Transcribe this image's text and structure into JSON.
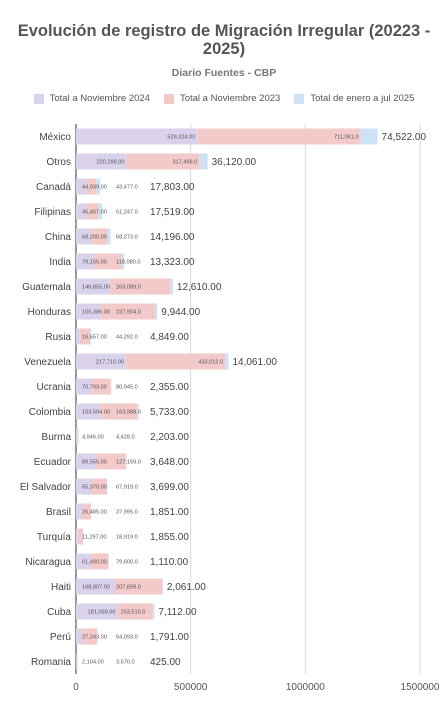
{
  "header": {
    "title": "Evolución de registro de Migración Irregular (20223 - 2025)",
    "subtitle": "Diario Fuentes - CBP"
  },
  "legend": [
    {
      "label": "Total a Noviembre 2024",
      "color": "#d9d2ea"
    },
    {
      "label": "Total a Noviembre 2023",
      "color": "#f3c9c9"
    },
    {
      "label": "Total de enero a jul 2025",
      "color": "#cfe2f3"
    }
  ],
  "chart_data": {
    "type": "bar",
    "orientation": "horizontal",
    "stacked": true,
    "title": "Evolución de registro de Migración Irregular (20223 - 2025)",
    "subtitle": "Diario Fuentes - CBP",
    "categories": [
      "México",
      "Otros",
      "Canadá",
      "Filipinas",
      "China",
      "India",
      "Guatemala",
      "Honduras",
      "Rusia",
      "Venezuela",
      "Ucrania",
      "Colombia",
      "Burma",
      "Ecuador",
      "El Salvador",
      "Brasil",
      "Turquía",
      "Nicaragua",
      "Haiti",
      "Cuba",
      "Perú",
      "Romania"
    ],
    "series": [
      {
        "name": "Total a Noviembre 2024",
        "color": "#d9d2ea",
        "values": [
          529324,
          220288,
          44939,
          45407,
          68200,
          79155,
          146855,
          106386,
          16657,
          217710,
          70793,
          103594,
          4946,
          89555,
          65370,
          26485,
          11297,
          61490,
          168807,
          181069,
          27243,
          2104
        ],
        "labels": [
          "529,324.00",
          "220,288.00",
          "44,939.00",
          "45,407.00",
          "68,200.00",
          "79,155.00",
          "146,855.00",
          "106,386.00",
          "16,657.00",
          "217,710.00",
          "70,793.00",
          "103,594.00",
          "4,946.00",
          "89,555.00",
          "65,370.00",
          "26,485.00",
          "11,297.00",
          "61,490.00",
          "168,807.00",
          "181,069.00",
          "27,243.00",
          "2,104.00"
        ]
      },
      {
        "name": "Total a Noviembre 2023",
        "color": "#f3c9c9",
        "values": [
          711061,
          317498,
          43477,
          51247,
          68273,
          118080,
          263089,
          237904,
          44292,
          433012,
          80945,
          163988,
          4428,
          127159,
          67919,
          37995,
          18919,
          79600,
          207899,
          153510,
          64093,
          3570
        ],
        "labels": [
          "711,061.0",
          "317,498.0",
          "43,477.0",
          "51,247.0",
          "68,273.0",
          "118,080.0",
          "263,089.0",
          "237,904.0",
          "44,292.0",
          "433,012.0",
          "80,945.0",
          "163,988.0",
          "4,428.0",
          "127,159.0",
          "67,919.0",
          "37,995.0",
          "18,919.0",
          "79,600.0",
          "207,899.0",
          "153,510.0",
          "64,093.0",
          "3,570.0"
        ]
      },
      {
        "name": "Total de enero a jul 2025",
        "color": "#cfe2f3",
        "values": [
          74522,
          36120,
          17803,
          17519,
          14196,
          13323,
          12610,
          9944,
          4849,
          14061,
          2355,
          5733,
          2203,
          3648,
          3699,
          1851,
          1855,
          1110,
          2061,
          7112,
          1791,
          425
        ],
        "labels": [
          "74,522.00",
          "36,120.00",
          "17,803.00",
          "17,519.00",
          "14,196.00",
          "13,323.00",
          "12,610.00",
          "9,944.00",
          "4,849.00",
          "14,061.00",
          "2,355.00",
          "5,733.00",
          "2,203.00",
          "3,648.00",
          "3,699.00",
          "1,851.00",
          "1,855.00",
          "1,110.00",
          "2,061.00",
          "7,112.00",
          "1,791.00",
          "425.00"
        ]
      }
    ],
    "xlim": [
      0,
      1500000
    ],
    "xticks": [
      0,
      500000,
      1000000,
      1500000
    ],
    "xtick_labels": [
      "0",
      "500000",
      "1000000",
      "1500000"
    ],
    "grid": true,
    "legend_position": "top"
  }
}
